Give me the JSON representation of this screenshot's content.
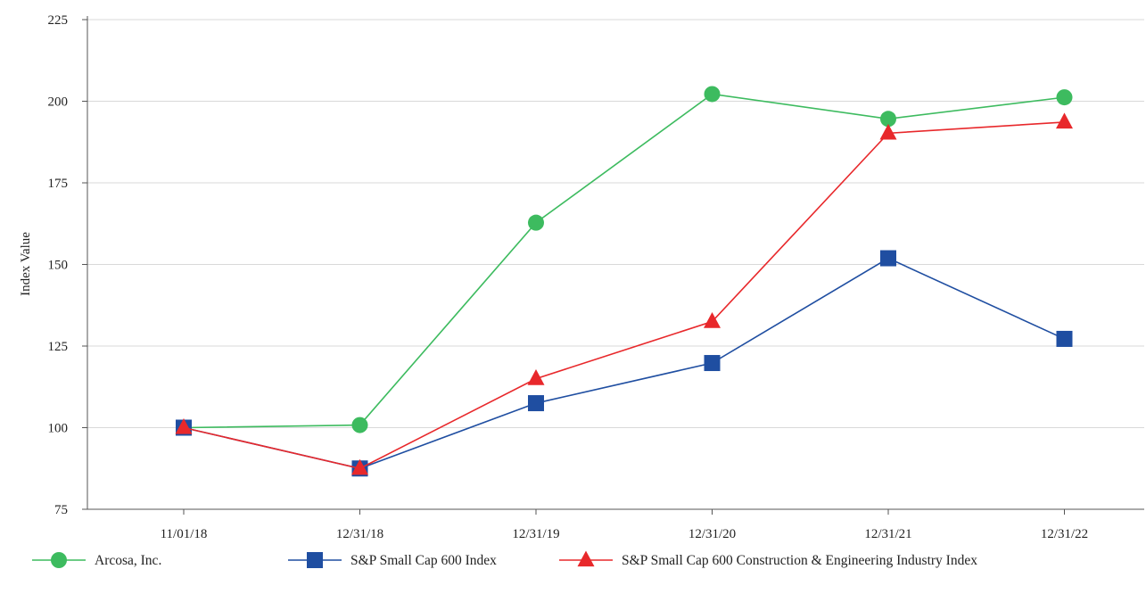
{
  "chart_data": {
    "type": "line",
    "title": "",
    "xlabel": "",
    "ylabel": "Index Value",
    "ylim": [
      75,
      225
    ],
    "yticks": [
      75,
      100,
      125,
      150,
      175,
      200,
      225
    ],
    "categories": [
      "11/01/18",
      "12/31/18",
      "12/31/19",
      "12/31/20",
      "12/31/21",
      "12/31/22"
    ],
    "grid": "horizontal",
    "legend_position": "bottom",
    "series": [
      {
        "name": "Arcosa, Inc.",
        "color": "#3dbb5f",
        "marker": "circle",
        "values": [
          100.0,
          100.8,
          162.8,
          202.2,
          194.6,
          201.2
        ]
      },
      {
        "name": "S&P Small Cap 600 Index",
        "color": "#1f4ea1",
        "marker": "square",
        "values": [
          100.0,
          87.5,
          107.5,
          119.8,
          151.9,
          127.2
        ]
      },
      {
        "name": "S&P Small Cap 600 Construction & Engineering Industry Index",
        "color": "#e8282b",
        "marker": "triangle",
        "values": [
          100.0,
          87.5,
          115.0,
          132.5,
          190.2,
          193.6
        ]
      }
    ]
  }
}
